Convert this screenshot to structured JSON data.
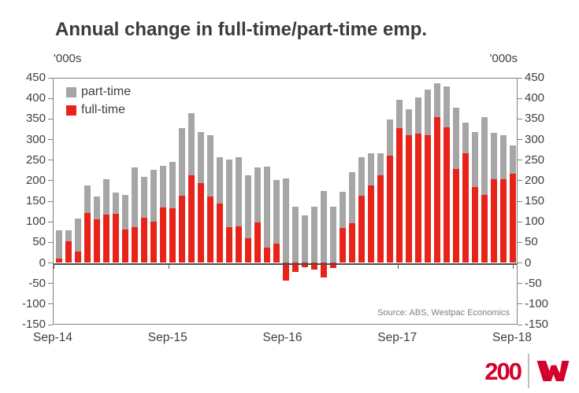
{
  "title": "Annual change in full-time/part-time emp.",
  "axis_unit_left": "'000s",
  "axis_unit_right": "'000s",
  "source": "Source: ABS, Westpac Economics",
  "legend": [
    {
      "label": "part-time",
      "color": "#A6A6A6"
    },
    {
      "label": "full-time",
      "color": "#E8231A"
    }
  ],
  "logo": {
    "text": "200",
    "color": "#D5002B"
  },
  "colors": {
    "title_text": "#3B3B3B",
    "axis_text": "#404040",
    "frame": "#808080",
    "zero_line": "#4D4D4D",
    "source_text": "#7F7F7F",
    "bar_red": "#E8231A",
    "bar_gray": "#A6A6A6",
    "logo_red": "#D5002B"
  },
  "chart_data": {
    "type": "bar",
    "stacked": true,
    "title": "Annual change in full-time/part-time emp.",
    "ylabel": "'000s",
    "ylim": [
      -150,
      450
    ],
    "y_ticks": [
      450,
      400,
      350,
      300,
      250,
      200,
      150,
      100,
      50,
      0,
      -50,
      -100,
      -150
    ],
    "x_tick_labels": [
      "Sep-14",
      "Sep-15",
      "Sep-16",
      "Sep-17",
      "Sep-18"
    ],
    "grid": false,
    "legend_position": "top-left-inside",
    "x": [
      "Sep-14",
      "Oct-14",
      "Nov-14",
      "Dec-14",
      "Jan-15",
      "Feb-15",
      "Mar-15",
      "Apr-15",
      "May-15",
      "Jun-15",
      "Jul-15",
      "Aug-15",
      "Sep-15",
      "Oct-15",
      "Nov-15",
      "Dec-15",
      "Jan-16",
      "Feb-16",
      "Mar-16",
      "Apr-16",
      "May-16",
      "Jun-16",
      "Jul-16",
      "Aug-16",
      "Sep-16",
      "Oct-16",
      "Nov-16",
      "Dec-16",
      "Jan-17",
      "Feb-17",
      "Mar-17",
      "Apr-17",
      "May-17",
      "Jun-17",
      "Jul-17",
      "Aug-17",
      "Sep-17",
      "Oct-17",
      "Nov-17",
      "Dec-17",
      "Jan-18",
      "Feb-18",
      "Mar-18",
      "Apr-18",
      "May-18",
      "Jun-18",
      "Jul-18",
      "Aug-18",
      "Sep-18"
    ],
    "series": [
      {
        "name": "full-time",
        "color": "#E8231A",
        "values": [
          8,
          50,
          26,
          119,
          105,
          115,
          117,
          79,
          86,
          108,
          98,
          133,
          130,
          161,
          211,
          192,
          159,
          143,
          86,
          87,
          58,
          96,
          35,
          45,
          -44,
          -23,
          -12,
          -18,
          -37,
          -15,
          83,
          95,
          161,
          187,
          212,
          259,
          325,
          309,
          313,
          308,
          352,
          327,
          226,
          264,
          183,
          163,
          201,
          201,
          215
        ]
      },
      {
        "name": "part-time",
        "color": "#A6A6A6",
        "values": [
          70,
          28,
          80,
          67,
          55,
          86,
          52,
          84,
          144,
          99,
          126,
          101,
          113,
          164,
          152,
          125,
          150,
          113,
          163,
          169,
          153,
          134,
          197,
          155,
          204,
          135,
          113,
          135,
          173,
          135,
          88,
          123,
          94,
          78,
          53,
          87,
          70,
          63,
          87,
          111,
          83,
          100,
          149,
          75,
          134,
          190,
          113,
          108,
          69
        ]
      }
    ]
  }
}
